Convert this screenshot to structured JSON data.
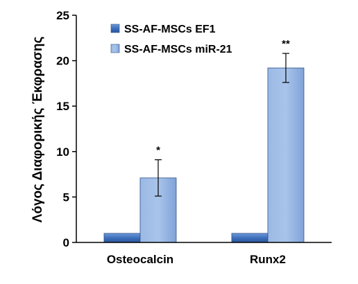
{
  "chart_data": {
    "type": "bar",
    "ylabel": "Λόγος Διαφορικής Έκφρασης",
    "xlabel": "",
    "ylim": [
      0,
      25
    ],
    "yticks": [
      0,
      5,
      10,
      15,
      20,
      25
    ],
    "categories": [
      "Osteocalcin",
      "Runx2"
    ],
    "series": [
      {
        "name": "SS-AF-MSCs EF1",
        "values": [
          1,
          1
        ],
        "color": "#3d6fbd"
      },
      {
        "name": "SS-AF-MSCs miR-21",
        "values": [
          7.1,
          19.2
        ],
        "color": "#8aaee0",
        "errors": [
          2.0,
          1.6
        ]
      }
    ],
    "annotations": [
      "*",
      "**"
    ],
    "legend_position": "top-center",
    "grid": false
  }
}
